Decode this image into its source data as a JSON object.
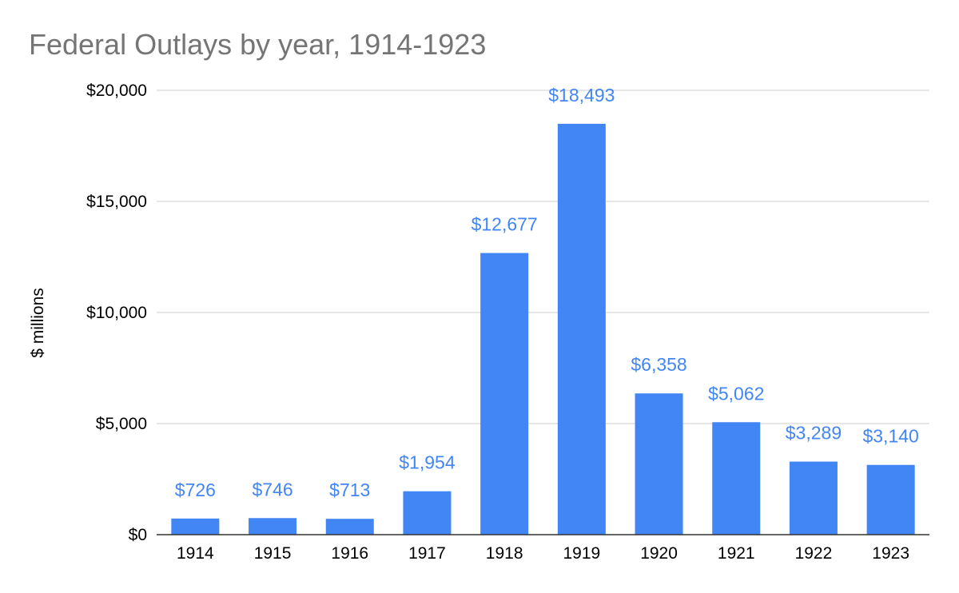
{
  "chart_data": {
    "type": "bar",
    "title": "Federal Outlays by year, 1914-1923",
    "xlabel": "",
    "ylabel": "$ millions",
    "categories": [
      "1914",
      "1915",
      "1916",
      "1917",
      "1918",
      "1919",
      "1920",
      "1921",
      "1922",
      "1923"
    ],
    "values": [
      726,
      746,
      713,
      1954,
      12677,
      18493,
      6358,
      5062,
      3289,
      3140
    ],
    "data_labels": [
      "$726",
      "$746",
      "$713",
      "$1,954",
      "$12,677",
      "$18,493",
      "$6,358",
      "$5,062",
      "$3,289",
      "$3,140"
    ],
    "ylim": [
      0,
      20000
    ],
    "yticks": [
      0,
      5000,
      10000,
      15000,
      20000
    ],
    "ytick_labels": [
      "$0",
      "$5,000",
      "$10,000",
      "$15,000",
      "$20,000"
    ],
    "grid": true,
    "legend": "none",
    "colors": {
      "bar": "#4285f4",
      "data_label": "#4285f4",
      "title": "#757575",
      "grid": "#cccccc",
      "baseline": "#333333"
    }
  }
}
